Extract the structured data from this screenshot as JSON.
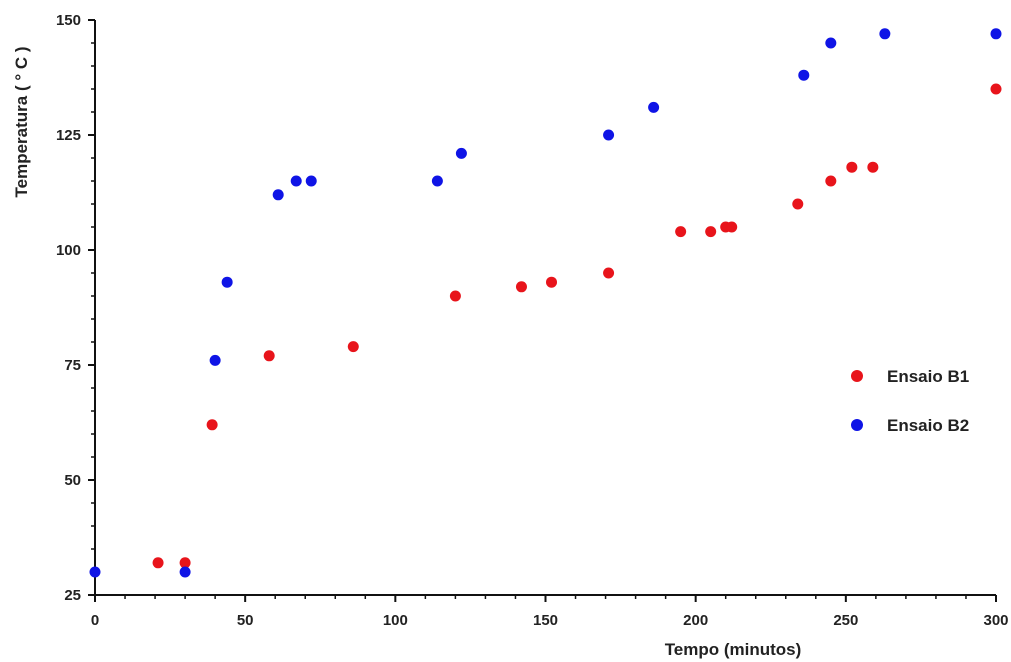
{
  "chart_data": {
    "type": "scatter",
    "title": "",
    "xlabel": "Tempo  (minutos)",
    "ylabel": "Temperatura  ( ° C )",
    "xlim": [
      0,
      300
    ],
    "ylim": [
      25,
      150
    ],
    "xticks": [
      0,
      50,
      100,
      150,
      200,
      250,
      300
    ],
    "yticks": [
      25,
      50,
      75,
      100,
      125,
      150
    ],
    "grid": false,
    "legend_position": "right",
    "series": [
      {
        "name": "Ensaio B1",
        "color": "#e8141b",
        "points": [
          {
            "x": 21,
            "y": 32
          },
          {
            "x": 30,
            "y": 32
          },
          {
            "x": 39,
            "y": 62
          },
          {
            "x": 58,
            "y": 77
          },
          {
            "x": 86,
            "y": 79
          },
          {
            "x": 120,
            "y": 90
          },
          {
            "x": 142,
            "y": 92
          },
          {
            "x": 152,
            "y": 93
          },
          {
            "x": 171,
            "y": 95
          },
          {
            "x": 195,
            "y": 104
          },
          {
            "x": 205,
            "y": 104
          },
          {
            "x": 210,
            "y": 105
          },
          {
            "x": 212,
            "y": 105
          },
          {
            "x": 234,
            "y": 110
          },
          {
            "x": 245,
            "y": 115
          },
          {
            "x": 252,
            "y": 118
          },
          {
            "x": 259,
            "y": 118
          },
          {
            "x": 300,
            "y": 135
          }
        ]
      },
      {
        "name": "Ensaio B2",
        "color": "#0f14e6",
        "points": [
          {
            "x": 0,
            "y": 30
          },
          {
            "x": 30,
            "y": 30
          },
          {
            "x": 40,
            "y": 76
          },
          {
            "x": 44,
            "y": 93
          },
          {
            "x": 61,
            "y": 112
          },
          {
            "x": 67,
            "y": 115
          },
          {
            "x": 72,
            "y": 115
          },
          {
            "x": 114,
            "y": 115
          },
          {
            "x": 122,
            "y": 121
          },
          {
            "x": 171,
            "y": 125
          },
          {
            "x": 186,
            "y": 131
          },
          {
            "x": 236,
            "y": 138
          },
          {
            "x": 245,
            "y": 145
          },
          {
            "x": 263,
            "y": 147
          },
          {
            "x": 300,
            "y": 147
          }
        ]
      }
    ]
  }
}
